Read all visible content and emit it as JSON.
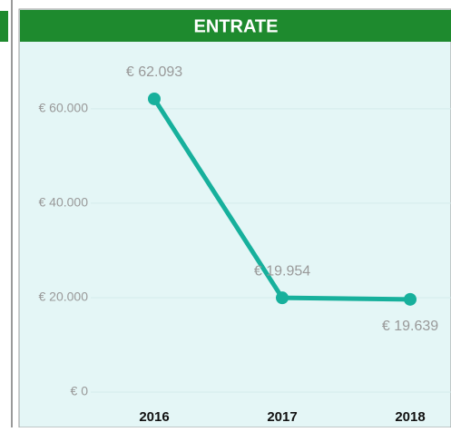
{
  "chart_data": {
    "type": "line",
    "title": "ENTRATE",
    "categories": [
      "2016",
      "2017",
      "2018"
    ],
    "values": [
      62093,
      19954,
      19639
    ],
    "value_labels": [
      "€ 62.093",
      "€ 19.954",
      "€ 19.639"
    ],
    "color": "#17b09c",
    "ylim": [
      0,
      74000
    ],
    "yticks": [
      {
        "value": 0,
        "label": "€ 0"
      },
      {
        "value": 20000,
        "label": "€ 20.000"
      },
      {
        "value": 40000,
        "label": "€ 40.000"
      },
      {
        "value": 60000,
        "label": "€ 60.000"
      }
    ],
    "grid": true
  }
}
